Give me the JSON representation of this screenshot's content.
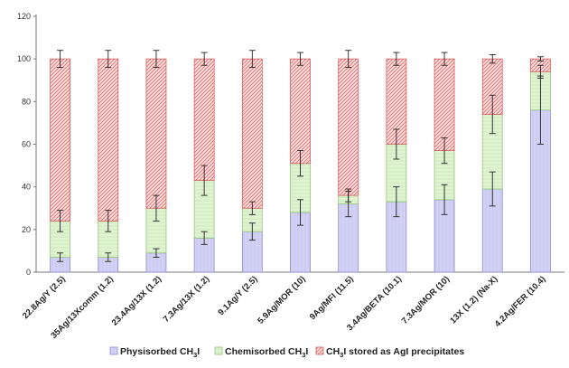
{
  "chart_data": {
    "type": "bar",
    "stacked": true,
    "ylim": [
      0,
      120
    ],
    "yticks": [
      0,
      20,
      40,
      60,
      80,
      100,
      120
    ],
    "grid": false,
    "legend_position": "bottom",
    "categories": [
      "22.8Ag/Y (2.5)",
      "35Ag/13Xcomm (1.2)",
      "23.4Ag/13X (1.2)",
      "7.3Ag/13X (1.2)",
      "9.1Ag/Y (2.5)",
      "5.9Ag/MOR (10)",
      "9Ag/MFI (11.5)",
      "3.4Ag/BETA (10.1)",
      "7.3Ag/MOR (10)",
      "13X (1.2) (Na-X)",
      "4.2Ag/FER (10.4)"
    ],
    "series": [
      {
        "name": "Physisorbed CH3I",
        "legend_main": "Physisorbed CH",
        "legend_sub": "3",
        "legend_tail": "I",
        "color": "#c9c8f0",
        "edge": "#8e8ccf",
        "values": [
          7,
          7,
          9,
          16,
          19,
          28,
          32,
          33,
          34,
          39,
          76
        ],
        "errors": [
          2,
          2,
          2,
          3,
          4,
          6,
          6,
          7,
          7,
          8,
          16
        ]
      },
      {
        "name": "Chemisorbed CH3I",
        "legend_main": "Chemisorbed CH",
        "legend_sub": "3",
        "legend_tail": "I",
        "color": "#d8efc6",
        "edge": "#95c77a",
        "values": [
          17,
          17,
          21,
          27,
          11,
          23,
          4,
          27,
          23,
          35,
          18
        ],
        "errors": [
          5,
          5,
          6,
          7,
          3,
          6,
          3,
          7,
          6,
          9,
          3
        ]
      },
      {
        "name": "CH3I stored as AgI precipitates",
        "legend_main": "CH",
        "legend_sub": "3",
        "legend_tail": "I stored as AgI precipitates",
        "color": "#f4a9a9",
        "edge": "#d85c5c",
        "values": [
          76,
          76,
          70,
          57,
          70,
          49,
          64,
          40,
          43,
          26,
          6
        ],
        "errors": [
          4,
          4,
          4,
          3,
          4,
          3,
          4,
          3,
          3,
          2,
          1
        ]
      }
    ]
  }
}
